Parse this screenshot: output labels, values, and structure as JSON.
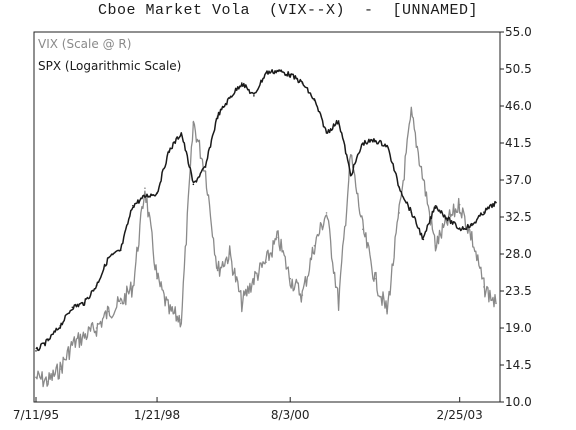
{
  "title": "Cboe Market Vola  (VIX--X)  -  [UNNAMED]",
  "chart_data": {
    "type": "line",
    "title": "Cboe Market Vola  (VIX--X)  -  [UNNAMED]",
    "x_tick_labels": [
      "7/11/95",
      "1/21/98",
      "8/3/00",
      "2/25/03"
    ],
    "y_tick_labels": [
      "10.0",
      "14.5",
      "19.0",
      "23.5",
      "28.0",
      "32.5",
      "37.0",
      "41.5",
      "46.0",
      "50.5",
      "55.0"
    ],
    "ylim": [
      10,
      55
    ],
    "y_axis_side": "right",
    "grid": false,
    "legend_placement": "top-left",
    "colors": {
      "vix": "#8a8a8a",
      "spx": "#1a1a1a"
    },
    "series": [
      {
        "name": "VIX (Scale @ R)",
        "x": [
          "7/11/95",
          "10/95",
          "1/96",
          "4/96",
          "7/96",
          "10/96",
          "1/97",
          "4/97",
          "7/97",
          "10/97",
          "1/21/98",
          "4/98",
          "7/98",
          "8/98",
          "10/98",
          "1/99",
          "4/99",
          "7/99",
          "10/99",
          "1/00",
          "4/00",
          "8/3/00",
          "10/00",
          "1/01",
          "4/01",
          "7/01",
          "9/01",
          "11/01",
          "1/02",
          "4/02",
          "7/02",
          "8/02",
          "10/02",
          "12/02",
          "1/03",
          "2/25/03",
          "3/03",
          "4/03",
          "5/03"
        ],
        "values": [
          13.0,
          12.5,
          14.0,
          17.0,
          18.0,
          19.0,
          21.0,
          22.0,
          24.0,
          36.0,
          25.0,
          21.0,
          20.0,
          44.0,
          38.0,
          26.0,
          28.0,
          22.0,
          25.0,
          27.0,
          30.0,
          25.0,
          23.0,
          29.0,
          33.0,
          22.0,
          40.0,
          31.0,
          25.0,
          21.0,
          33.0,
          45.0,
          37.0,
          29.0,
          32.0,
          34.0,
          30.0,
          24.0,
          22.0
        ]
      },
      {
        "name": "SPX (Logarithmic Scale)",
        "x": [
          "7/11/95",
          "10/95",
          "1/96",
          "4/96",
          "7/96",
          "10/96",
          "1/97",
          "4/97",
          "7/97",
          "10/97",
          "1/21/98",
          "4/98",
          "7/98",
          "8/98",
          "10/98",
          "1/99",
          "4/99",
          "7/99",
          "10/99",
          "1/00",
          "4/00",
          "8/3/00",
          "10/00",
          "1/01",
          "4/01",
          "7/01",
          "9/01",
          "11/01",
          "1/02",
          "4/02",
          "7/02",
          "8/02",
          "10/02",
          "12/02",
          "1/03",
          "2/25/03",
          "3/03",
          "4/03",
          "5/03"
        ],
        "values": [
          560,
          580,
          610,
          650,
          660,
          700,
          770,
          790,
          920,
          950,
          960,
          1110,
          1180,
          990,
          1050,
          1250,
          1330,
          1400,
          1340,
          1450,
          1460,
          1440,
          1400,
          1320,
          1180,
          1230,
          1020,
          1140,
          1150,
          1130,
          980,
          900,
          820,
          920,
          880,
          850,
          860,
          900,
          930
        ]
      }
    ]
  }
}
